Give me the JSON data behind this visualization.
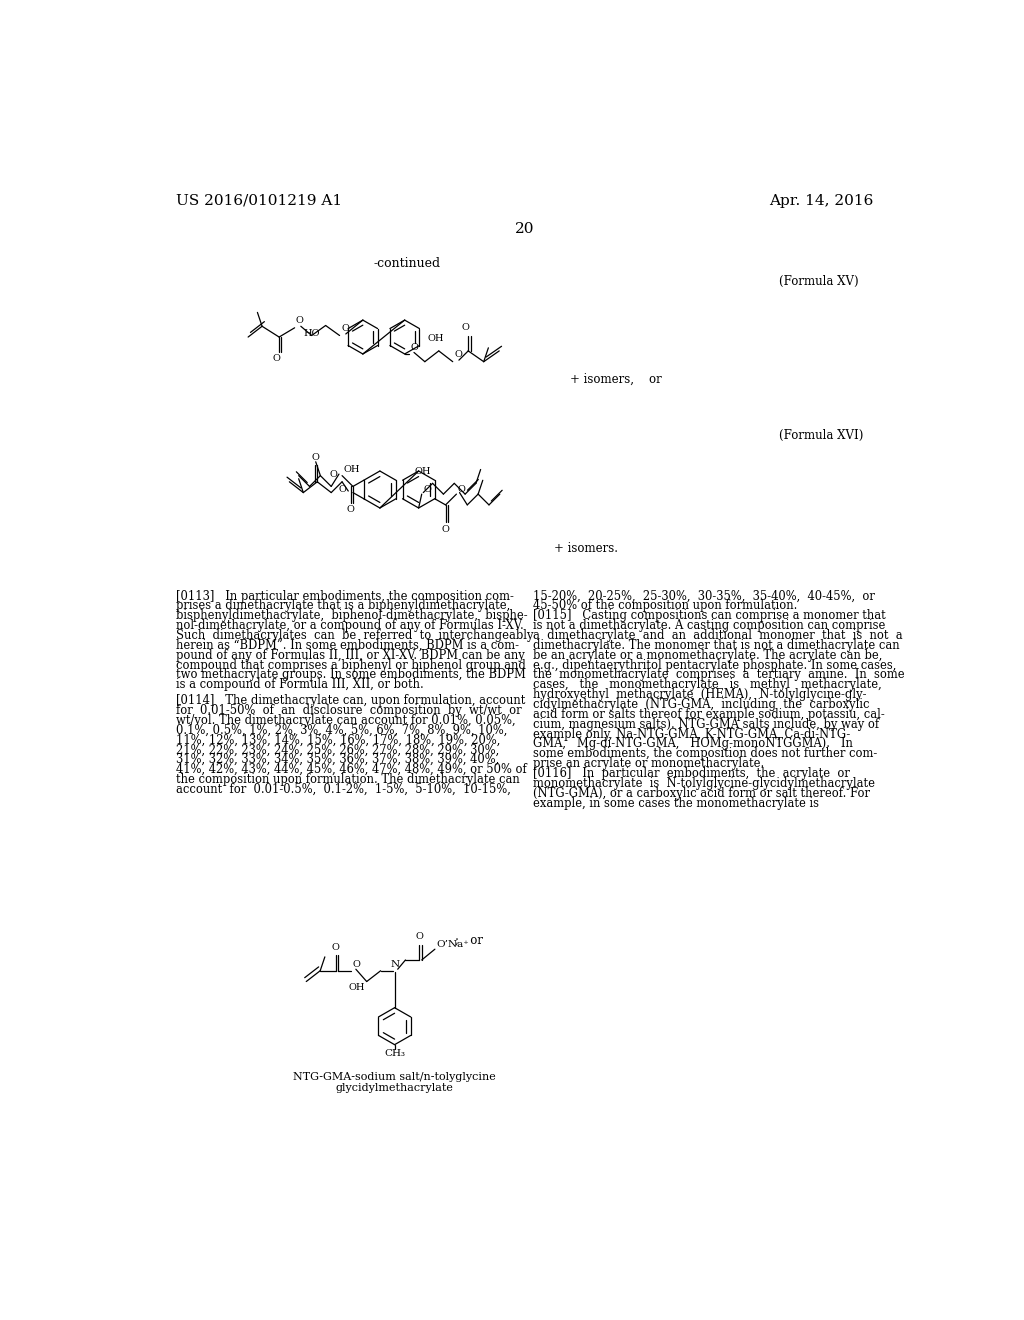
{
  "background_color": "#ffffff",
  "header_left": "US 2016/0101219 A1",
  "header_right": "Apr. 14, 2016",
  "page_number": "20",
  "continued_text": "-continued",
  "formula_xv_label": "(Formula XV)",
  "formula_xvi_label": "(Formula XVI)",
  "isomers_or_text": "+ isomers,    or",
  "isomers_text": "+ isomers.",
  "body_text_col1": "[0113]   In particular embodiments, the composition com-\nprises a dimethacrylate that is a biphenyldimethacrylate,\nbisphenyldimethacrylate,  biphenol-dimethacrylate,  bisphe-\nnol-dimethacrylate, or a compound of any of Formulas I-XV.\nSuch  dimethacrylates  can  be  referred  to  interchangeably\nherein as “BDPM”. In some embodiments, BDPM is a com-\npound of any of Formulas II, III, or XI-XV. BDPM can be any\ncompound that comprises a biphenyl or biphenol group and\ntwo methacrylate groups. In some embodiments, the BDPM\nis a compound of Formula III, XII, or both.\n\n[0114]   The dimethacrylate can, upon formulation, account\nfor  0.01-50%  of  an  disclosure  composition  by  wt/wt  or\nwt/vol. The dimethacrylate can account for 0.01%, 0.05%,\n0.1%, 0.5%, 1%, 2%, 3%, 4%, 5%, 6%, 7%, 8%, 9%, 10%,\n11%, 12%, 13%, 14%, 15%, 16%, 17%, 18%, 19%, 20%,\n21%, 22%, 23%, 24%, 25%, 26%, 27%, 28%, 29%, 30%,\n31%, 32%, 33%, 34%, 35%, 36%, 37%, 38%, 39%, 40%,\n41%, 42%, 43%, 44%, 45%, 46%, 47%, 48%, 49%, or 50% of\nthe composition upon formulation. The dimethacrylate can\naccount  for  0.01-0.5%,  0.1-2%,  1-5%,  5-10%,  10-15%,",
  "body_text_col2": "15-20%,  20-25%,  25-30%,  30-35%,  35-40%,  40-45%,  or\n45-50% of the composition upon formulation.\n[0115]   Casting compositions can comprise a monomer that\nis not a dimethacrylate. A casting composition can comprise\na  dimethacrylate  and  an  additional  monomer  that  is  not  a\ndimethacrylate. The monomer that is not a dimethacrylate can\nbe an acrylate or a monomethacrylate. The acrylate can be,\ne.g., dipentaerythritol pentacrylate phosphate. In some cases,\nthe  monomethacrylate  comprises  a  tertiary  amine.  In  some\ncases,   the   monomethacrylate   is   methyl   methacrylate,\nhydroxyethyl  methacrylate  (HEMA),  N-tolylglycine-gly-\ncidylmethacrylate  (NTG-GMA,  including  the  carboxylic\nacid form or salts thereof for example sodium, potassiu, cal-\ncium, magnesium salts). NTG-GMA salts include, by way of\nexample only, Na-NTG-GMA, K-NTG-GMA, Ca-di-NTG-\nGMA,   Mg-di-NTG-GMA,   HOMg-monoNTGGMA).   In\nsome embodiments, the composition does not further com-\nprise an acrylate or monomethacrylate.\n[0116]   In  particular  embodiments,  the  acrylate  or\nmonomethacrylate  is  N-tolylglycine-glycidylmethacrylate\n(NTG-GMA), or a carboxylic acid form or salt thereof. For\nexample, in some cases the monomethacrylate is",
  "ntg_label1": "NTG-GMA-sodium salt/n-tolyglycine",
  "ntg_label2": "glycidylmethacrylate",
  "body_font_size": 8.3
}
